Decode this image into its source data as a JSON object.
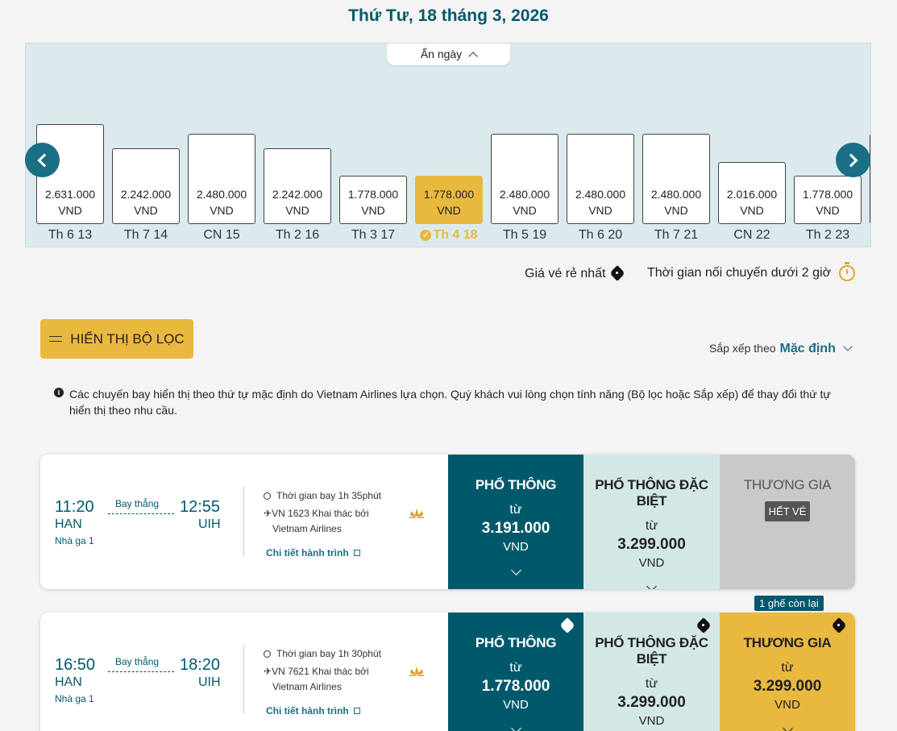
{
  "header": {
    "date_title": "Thứ Tư, 18 tháng 3, 2026",
    "hide_days_label": "Ẩn ngày"
  },
  "date_strip": {
    "days": [
      {
        "label": "Th 6 13",
        "price": "2.631.000",
        "currency": "VND",
        "height": 124,
        "selected": false
      },
      {
        "label": "Th 7 14",
        "price": "2.242.000",
        "currency": "VND",
        "height": 94,
        "selected": false
      },
      {
        "label": "CN 15",
        "price": "2.480.000",
        "currency": "VND",
        "height": 112,
        "selected": false
      },
      {
        "label": "Th 2 16",
        "price": "2.242.000",
        "currency": "VND",
        "height": 94,
        "selected": false
      },
      {
        "label": "Th 3 17",
        "price": "1.778.000",
        "currency": "VND",
        "height": 60,
        "selected": false
      },
      {
        "label": "Th 4 18",
        "price": "1.778.000",
        "currency": "VND",
        "height": 60,
        "selected": true
      },
      {
        "label": "Th 5 19",
        "price": "2.480.000",
        "currency": "VND",
        "height": 112,
        "selected": false
      },
      {
        "label": "Th 6 20",
        "price": "2.480.000",
        "currency": "VND",
        "height": 112,
        "selected": false
      },
      {
        "label": "Th 7 21",
        "price": "2.480.000",
        "currency": "VND",
        "height": 112,
        "selected": false
      },
      {
        "label": "CN 22",
        "price": "2.016.000",
        "currency": "VND",
        "height": 77,
        "selected": false
      },
      {
        "label": "Th 2 23",
        "price": "1.778.000",
        "currency": "VND",
        "height": 60,
        "selected": false
      }
    ]
  },
  "legend": {
    "cheapest": "Giá vé rẻ nhất",
    "short_connection": "Thời gian nối chuyến dưới 2 giờ"
  },
  "filter_button": "HIỂN THỊ BỘ LỌC",
  "sort": {
    "label": "Sắp xếp theo",
    "value": "Mặc định"
  },
  "info_text": "Các chuyến bay hiển thị theo thứ tự mặc định do Vietnam Airlines lựa chọn. Quý khách vui lòng chọn tính năng (Bộ lọc hoặc Sắp xếp) để thay đổi thứ tự hiển thị theo nhu cầu.",
  "flights": [
    {
      "dep_time": "11:20",
      "arr_time": "12:55",
      "dep_code": "HAN",
      "arr_code": "UIH",
      "terminal": "Nhà ga 1",
      "stop_type": "Bay thẳng",
      "duration": "Thời gian bay 1h 35phút",
      "flight_no": "VN 1623 Khai thác bởi",
      "operator": "Vietnam Airlines",
      "details_link": "Chi tiết hành trình",
      "fares": {
        "economy": {
          "name": "PHỔ THÔNG",
          "from": "từ",
          "price": "3.191.000",
          "currency": "VND"
        },
        "premium": {
          "name": "PHỔ THÔNG ĐẶC BIỆT",
          "from": "từ",
          "price": "3.299.000",
          "currency": "VND"
        },
        "business": {
          "name": "THƯƠNG GIA",
          "status": "HẾT VÉ"
        }
      }
    },
    {
      "dep_time": "16:50",
      "arr_time": "18:20",
      "dep_code": "HAN",
      "arr_code": "UIH",
      "terminal": "Nhà ga 1",
      "stop_type": "Bay thẳng",
      "duration": "Thời gian bay 1h 30phút",
      "flight_no": "VN 7621 Khai thác bởi",
      "operator": "Vietnam Airlines",
      "details_link": "Chi tiết hành trình",
      "seats_left": "1 ghế còn lại",
      "fares": {
        "economy": {
          "name": "PHỔ THÔNG",
          "from": "từ",
          "price": "1.778.000",
          "currency": "VND"
        },
        "premium": {
          "name": "PHỔ THÔNG ĐẶC BIỆT",
          "from": "từ",
          "price": "3.299.000",
          "currency": "VND"
        },
        "business": {
          "name": "THƯƠNG GIA",
          "from": "từ",
          "price": "3.299.000",
          "currency": "VND"
        }
      }
    }
  ],
  "colors": {
    "primary": "#00596b",
    "accent": "#e9b83e",
    "panel_bg": "#dbeaed",
    "premium_bg": "#d3e8e6",
    "soldout_bg": "#c9c9c9"
  },
  "icons": [
    "chevron-up-icon",
    "arrow-left-icon",
    "arrow-right-icon",
    "price-tag-icon",
    "timer-icon",
    "filter-icon",
    "chevron-down-icon",
    "info-icon",
    "clock-icon",
    "plane-icon",
    "lotus-logo-icon",
    "external-link-icon"
  ]
}
